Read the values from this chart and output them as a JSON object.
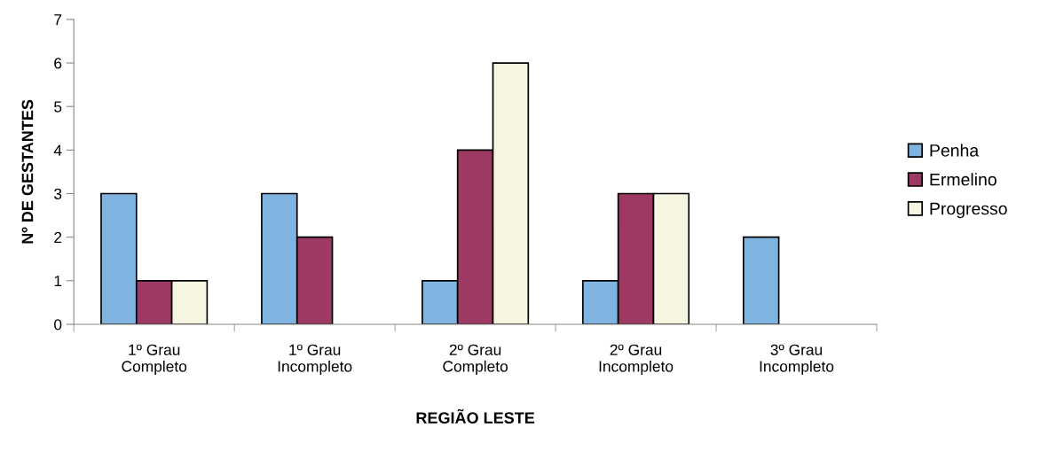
{
  "chart_data": {
    "type": "bar",
    "xlabel": "REGIÃO LESTE",
    "ylabel": "Nº DE GESTANTES",
    "categories": [
      "1º Grau\nCompleto",
      "1º Grau\nIncompleto",
      "2º Grau\nCompleto",
      "2º Grau\nIncompleto",
      "3º Grau\nIncompleto"
    ],
    "series": [
      {
        "name": "Penha",
        "color": "#80b4e0",
        "values": [
          3,
          3,
          1,
          1,
          2
        ]
      },
      {
        "name": "Ermelino",
        "color": "#9c3a64",
        "values": [
          1,
          2,
          4,
          3,
          null
        ]
      },
      {
        "name": "Progresso",
        "color": "#f5f5e1",
        "values": [
          1,
          null,
          6,
          3,
          null
        ]
      }
    ],
    "ylim": [
      0,
      7
    ],
    "yticks": [
      0,
      1,
      2,
      3,
      4,
      5,
      6,
      7
    ],
    "grid": false,
    "legend": "right"
  }
}
